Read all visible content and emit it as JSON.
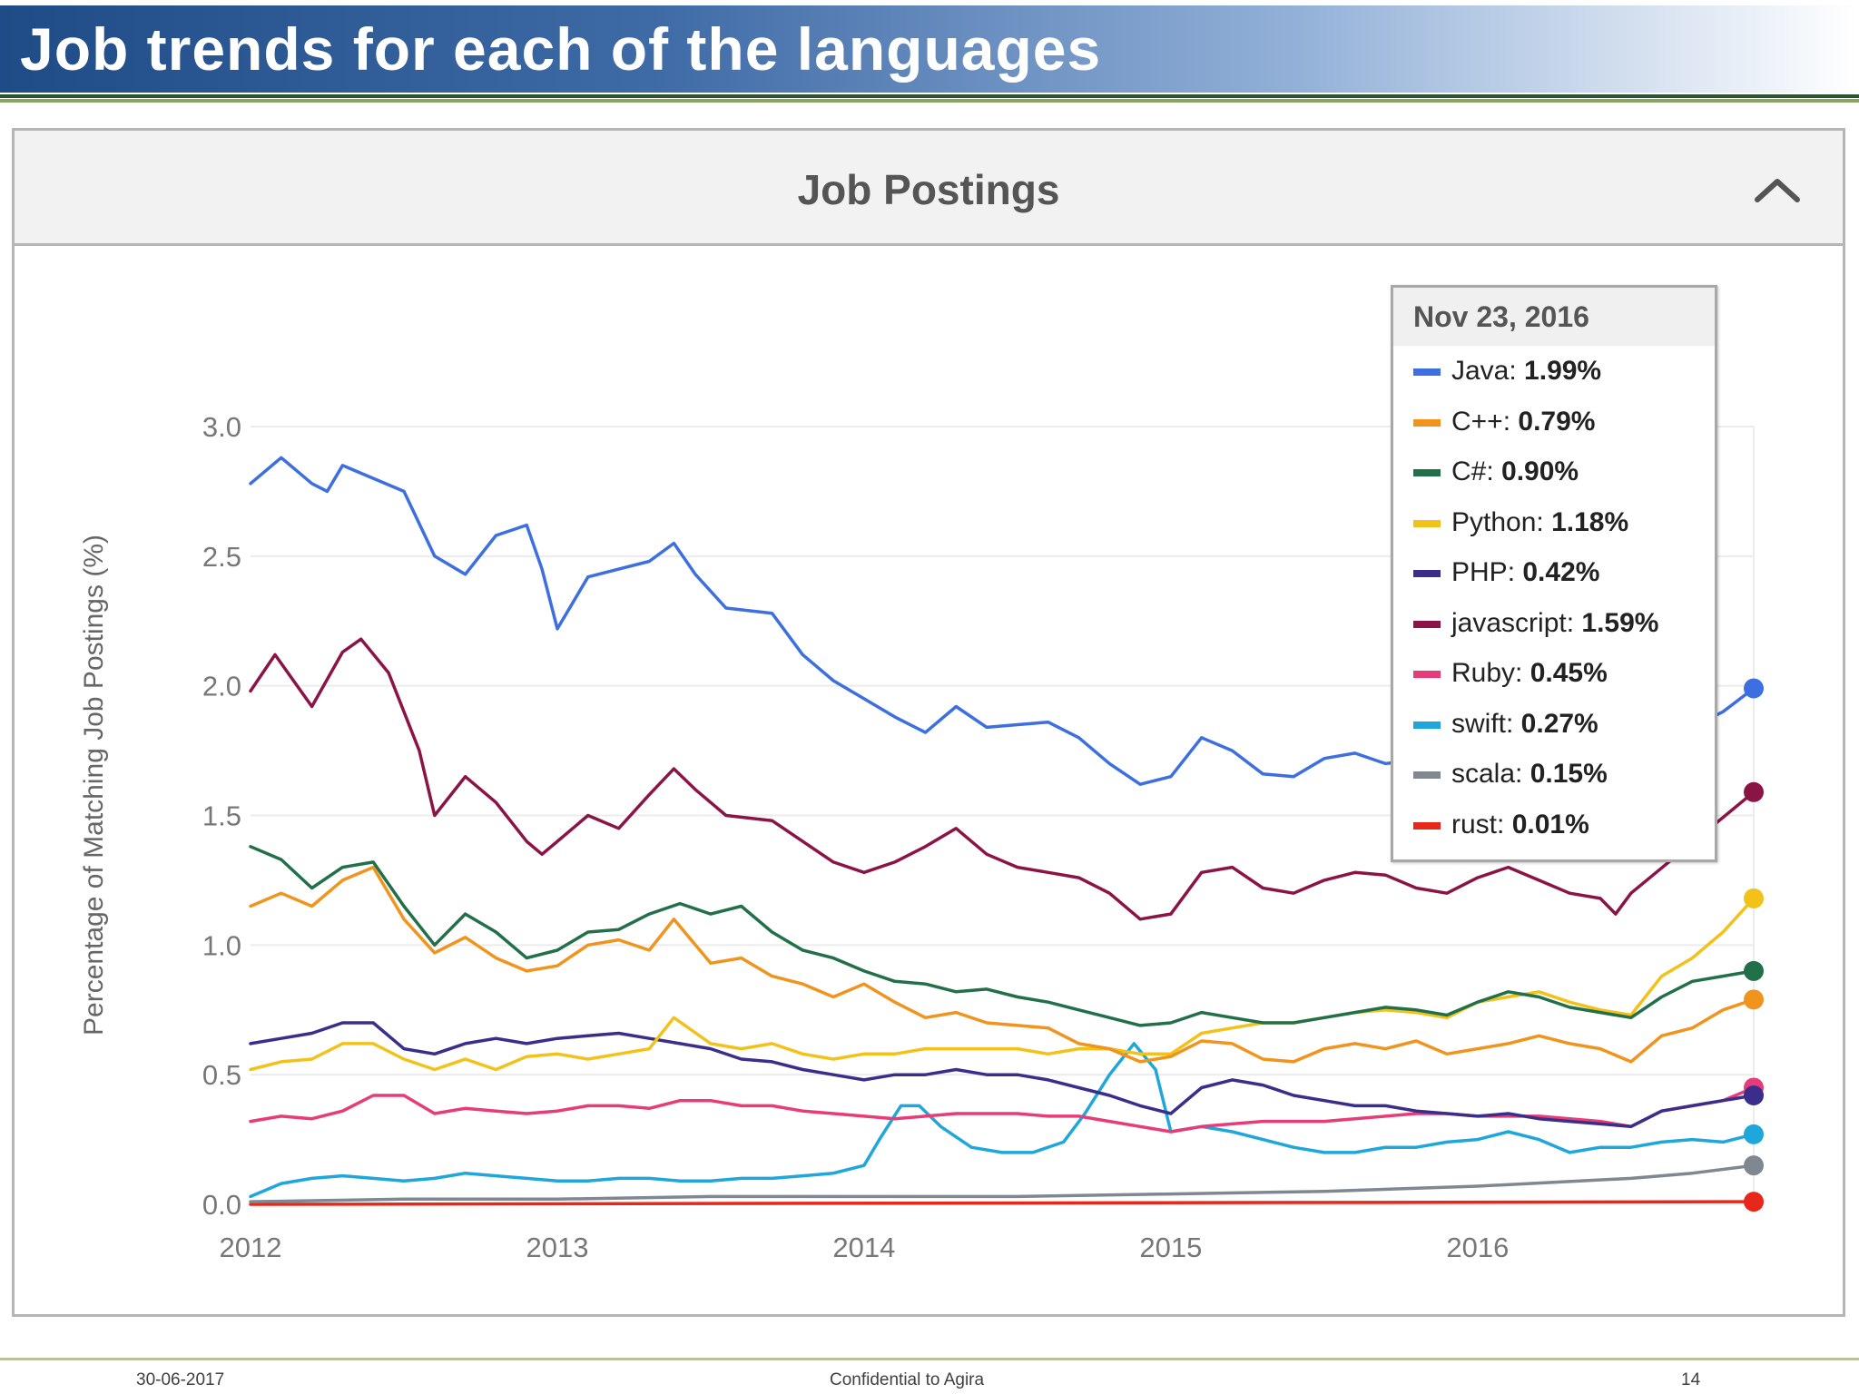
{
  "slide": {
    "title": "Job trends for each of the languages",
    "footer_date": "30-06-2017",
    "footer_center": "Confidential to Agira",
    "footer_page": "14"
  },
  "panel": {
    "title": "Job Postings",
    "collapse_icon": "chevron-up-icon"
  },
  "tooltip": {
    "date": "Nov 23, 2016",
    "rows": [
      {
        "label": "Java",
        "value": "1.99%"
      },
      {
        "label": "C++",
        "value": "0.79%"
      },
      {
        "label": "C#",
        "value": "0.90%"
      },
      {
        "label": "Python",
        "value": "1.18%"
      },
      {
        "label": "PHP",
        "value": "0.42%"
      },
      {
        "label": "javascript",
        "value": "1.59%"
      },
      {
        "label": "Ruby",
        "value": "0.45%"
      },
      {
        "label": "swift",
        "value": "0.27%"
      },
      {
        "label": "scala",
        "value": "0.15%"
      },
      {
        "label": "rust",
        "value": "0.01%"
      }
    ]
  },
  "chart_data": {
    "type": "line",
    "title": "Job Postings",
    "xlabel": "",
    "ylabel": "Percentage of Matching Job Postings (%)",
    "xlim": [
      2012.0,
      2016.9
    ],
    "ylim": [
      0,
      3.0
    ],
    "x_ticks": [
      "2012",
      "2013",
      "2014",
      "2015",
      "2016"
    ],
    "y_ticks": [
      "0.0",
      "0.5",
      "1.0",
      "1.5",
      "2.0",
      "2.5",
      "3.0"
    ],
    "grid": true,
    "series": [
      {
        "name": "Java",
        "color": "#3d6fe0",
        "x": [
          2012.0,
          2012.1,
          2012.2,
          2012.25,
          2012.3,
          2012.4,
          2012.5,
          2012.6,
          2012.7,
          2012.8,
          2012.9,
          2012.95,
          2013.0,
          2013.1,
          2013.2,
          2013.3,
          2013.38,
          2013.45,
          2013.55,
          2013.7,
          2013.8,
          2013.9,
          2014.0,
          2014.1,
          2014.2,
          2014.3,
          2014.4,
          2014.5,
          2014.6,
          2014.7,
          2014.8,
          2014.9,
          2015.0,
          2015.1,
          2015.2,
          2015.3,
          2015.4,
          2015.5,
          2015.6,
          2015.7,
          2016.7,
          2016.8,
          2016.9
        ],
        "y": [
          2.78,
          2.88,
          2.78,
          2.75,
          2.85,
          2.8,
          2.75,
          2.5,
          2.43,
          2.58,
          2.62,
          2.45,
          2.22,
          2.42,
          2.45,
          2.48,
          2.55,
          2.43,
          2.3,
          2.28,
          2.12,
          2.02,
          1.95,
          1.88,
          1.82,
          1.92,
          1.84,
          1.85,
          1.86,
          1.8,
          1.7,
          1.62,
          1.65,
          1.8,
          1.75,
          1.66,
          1.65,
          1.72,
          1.74,
          1.7,
          1.84,
          1.9,
          1.99
        ]
      },
      {
        "name": "C++",
        "color": "#f0941e",
        "x": [
          2012.0,
          2012.1,
          2012.2,
          2012.3,
          2012.4,
          2012.5,
          2012.6,
          2012.7,
          2012.8,
          2012.9,
          2013.0,
          2013.1,
          2013.2,
          2013.3,
          2013.38,
          2013.5,
          2013.6,
          2013.7,
          2013.8,
          2013.9,
          2014.0,
          2014.1,
          2014.2,
          2014.3,
          2014.4,
          2014.5,
          2014.6,
          2014.7,
          2014.8,
          2014.9,
          2015.0,
          2015.1,
          2015.2,
          2015.3,
          2015.4,
          2015.5,
          2015.6,
          2015.7,
          2015.8,
          2015.9,
          2016.0,
          2016.1,
          2016.2,
          2016.3,
          2016.4,
          2016.5,
          2016.6,
          2016.7,
          2016.8,
          2016.9
        ],
        "y": [
          1.15,
          1.2,
          1.15,
          1.25,
          1.3,
          1.1,
          0.97,
          1.03,
          0.95,
          0.9,
          0.92,
          1.0,
          1.02,
          0.98,
          1.1,
          0.93,
          0.95,
          0.88,
          0.85,
          0.8,
          0.85,
          0.78,
          0.72,
          0.74,
          0.7,
          0.69,
          0.68,
          0.62,
          0.6,
          0.55,
          0.57,
          0.63,
          0.62,
          0.56,
          0.55,
          0.6,
          0.62,
          0.6,
          0.63,
          0.58,
          0.6,
          0.62,
          0.65,
          0.62,
          0.6,
          0.55,
          0.65,
          0.68,
          0.75,
          0.79
        ]
      },
      {
        "name": "C#",
        "color": "#22704a",
        "x": [
          2012.0,
          2012.1,
          2012.2,
          2012.3,
          2012.4,
          2012.5,
          2012.6,
          2012.7,
          2012.8,
          2012.9,
          2013.0,
          2013.1,
          2013.2,
          2013.3,
          2013.4,
          2013.5,
          2013.6,
          2013.7,
          2013.8,
          2013.9,
          2014.0,
          2014.1,
          2014.2,
          2014.3,
          2014.4,
          2014.5,
          2014.6,
          2014.7,
          2014.8,
          2014.9,
          2015.0,
          2015.1,
          2015.2,
          2015.3,
          2015.4,
          2015.5,
          2015.6,
          2015.7,
          2015.8,
          2015.9,
          2016.0,
          2016.1,
          2016.2,
          2016.3,
          2016.4,
          2016.5,
          2016.6,
          2016.7,
          2016.8,
          2016.9
        ],
        "y": [
          1.38,
          1.33,
          1.22,
          1.3,
          1.32,
          1.15,
          1.0,
          1.12,
          1.05,
          0.95,
          0.98,
          1.05,
          1.06,
          1.12,
          1.16,
          1.12,
          1.15,
          1.05,
          0.98,
          0.95,
          0.9,
          0.86,
          0.85,
          0.82,
          0.83,
          0.8,
          0.78,
          0.75,
          0.72,
          0.69,
          0.7,
          0.74,
          0.72,
          0.7,
          0.7,
          0.72,
          0.74,
          0.76,
          0.75,
          0.73,
          0.78,
          0.82,
          0.8,
          0.76,
          0.74,
          0.72,
          0.8,
          0.86,
          0.88,
          0.9
        ]
      },
      {
        "name": "Python",
        "color": "#f2c21b",
        "x": [
          2012.0,
          2012.1,
          2012.2,
          2012.3,
          2012.4,
          2012.5,
          2012.6,
          2012.7,
          2012.8,
          2012.9,
          2013.0,
          2013.1,
          2013.2,
          2013.3,
          2013.38,
          2013.5,
          2013.6,
          2013.7,
          2013.8,
          2013.9,
          2014.0,
          2014.1,
          2014.2,
          2014.3,
          2014.4,
          2014.5,
          2014.6,
          2014.7,
          2014.8,
          2014.9,
          2015.0,
          2015.1,
          2015.2,
          2015.3,
          2015.4,
          2015.5,
          2015.6,
          2015.7,
          2015.8,
          2015.9,
          2016.0,
          2016.1,
          2016.2,
          2016.3,
          2016.4,
          2016.5,
          2016.6,
          2016.7,
          2016.8,
          2016.9
        ],
        "y": [
          0.52,
          0.55,
          0.56,
          0.62,
          0.62,
          0.56,
          0.52,
          0.56,
          0.52,
          0.57,
          0.58,
          0.56,
          0.58,
          0.6,
          0.72,
          0.62,
          0.6,
          0.62,
          0.58,
          0.56,
          0.58,
          0.58,
          0.6,
          0.6,
          0.6,
          0.6,
          0.58,
          0.6,
          0.6,
          0.58,
          0.58,
          0.66,
          0.68,
          0.7,
          0.7,
          0.72,
          0.74,
          0.75,
          0.74,
          0.72,
          0.78,
          0.8,
          0.82,
          0.78,
          0.75,
          0.73,
          0.88,
          0.95,
          1.05,
          1.18
        ]
      },
      {
        "name": "PHP",
        "color": "#3b2e8a",
        "x": [
          2012.0,
          2012.1,
          2012.2,
          2012.3,
          2012.4,
          2012.5,
          2012.6,
          2012.7,
          2012.8,
          2012.9,
          2013.0,
          2013.1,
          2013.2,
          2013.3,
          2013.4,
          2013.5,
          2013.6,
          2013.7,
          2013.8,
          2013.9,
          2014.0,
          2014.1,
          2014.2,
          2014.3,
          2014.4,
          2014.5,
          2014.6,
          2014.7,
          2014.8,
          2014.9,
          2015.0,
          2015.1,
          2015.2,
          2015.3,
          2015.4,
          2015.5,
          2015.6,
          2015.7,
          2015.8,
          2015.9,
          2016.0,
          2016.1,
          2016.2,
          2016.3,
          2016.4,
          2016.5,
          2016.6,
          2016.7,
          2016.8,
          2016.9
        ],
        "y": [
          0.62,
          0.64,
          0.66,
          0.7,
          0.7,
          0.6,
          0.58,
          0.62,
          0.64,
          0.62,
          0.64,
          0.65,
          0.66,
          0.64,
          0.62,
          0.6,
          0.56,
          0.55,
          0.52,
          0.5,
          0.48,
          0.5,
          0.5,
          0.52,
          0.5,
          0.5,
          0.48,
          0.45,
          0.42,
          0.38,
          0.35,
          0.45,
          0.48,
          0.46,
          0.42,
          0.4,
          0.38,
          0.38,
          0.36,
          0.35,
          0.34,
          0.35,
          0.33,
          0.32,
          0.31,
          0.3,
          0.36,
          0.38,
          0.4,
          0.42
        ]
      },
      {
        "name": "javascript",
        "color": "#8b1446",
        "x": [
          2012.0,
          2012.08,
          2012.2,
          2012.3,
          2012.36,
          2012.45,
          2012.55,
          2012.6,
          2012.7,
          2012.8,
          2012.9,
          2012.95,
          2013.0,
          2013.1,
          2013.2,
          2013.3,
          2013.38,
          2013.45,
          2013.55,
          2013.7,
          2013.8,
          2013.9,
          2014.0,
          2014.1,
          2014.2,
          2014.3,
          2014.4,
          2014.5,
          2014.6,
          2014.7,
          2014.8,
          2014.9,
          2015.0,
          2015.1,
          2015.2,
          2015.3,
          2015.4,
          2015.5,
          2015.6,
          2015.7,
          2015.8,
          2015.9,
          2016.0,
          2016.1,
          2016.2,
          2016.3,
          2016.4,
          2016.45,
          2016.5,
          2016.9
        ],
        "y": [
          1.98,
          2.12,
          1.92,
          2.13,
          2.18,
          2.05,
          1.75,
          1.5,
          1.65,
          1.55,
          1.4,
          1.35,
          1.4,
          1.5,
          1.45,
          1.58,
          1.68,
          1.6,
          1.5,
          1.48,
          1.4,
          1.32,
          1.28,
          1.32,
          1.38,
          1.45,
          1.35,
          1.3,
          1.28,
          1.26,
          1.2,
          1.1,
          1.12,
          1.28,
          1.3,
          1.22,
          1.2,
          1.25,
          1.28,
          1.27,
          1.22,
          1.2,
          1.26,
          1.3,
          1.25,
          1.2,
          1.18,
          1.12,
          1.2,
          1.59
        ]
      },
      {
        "name": "Ruby",
        "color": "#e63c78",
        "x": [
          2012.0,
          2012.1,
          2012.2,
          2012.3,
          2012.4,
          2012.5,
          2012.6,
          2012.7,
          2012.8,
          2012.9,
          2013.0,
          2013.1,
          2013.2,
          2013.3,
          2013.4,
          2013.5,
          2013.6,
          2013.7,
          2013.8,
          2013.9,
          2014.0,
          2014.1,
          2014.2,
          2014.3,
          2014.4,
          2014.5,
          2014.6,
          2014.7,
          2014.8,
          2014.9,
          2015.0,
          2015.1,
          2015.2,
          2015.3,
          2015.4,
          2015.5,
          2015.6,
          2015.7,
          2015.8,
          2015.9,
          2016.0,
          2016.1,
          2016.2,
          2016.3,
          2016.4,
          2016.5,
          2016.6,
          2016.7,
          2016.8,
          2016.9
        ],
        "y": [
          0.32,
          0.34,
          0.33,
          0.36,
          0.42,
          0.42,
          0.35,
          0.37,
          0.36,
          0.35,
          0.36,
          0.38,
          0.38,
          0.37,
          0.4,
          0.4,
          0.38,
          0.38,
          0.36,
          0.35,
          0.34,
          0.33,
          0.34,
          0.35,
          0.35,
          0.35,
          0.34,
          0.34,
          0.32,
          0.3,
          0.28,
          0.3,
          0.31,
          0.32,
          0.32,
          0.32,
          0.33,
          0.34,
          0.35,
          0.35,
          0.34,
          0.34,
          0.34,
          0.33,
          0.32,
          0.3,
          0.36,
          0.38,
          0.4,
          0.45
        ]
      },
      {
        "name": "swift",
        "color": "#1fa7dc",
        "x": [
          2012.0,
          2012.1,
          2012.2,
          2012.3,
          2012.4,
          2012.5,
          2012.6,
          2012.7,
          2012.8,
          2012.9,
          2013.0,
          2013.1,
          2013.2,
          2013.3,
          2013.4,
          2013.5,
          2013.6,
          2013.7,
          2013.8,
          2013.9,
          2014.0,
          2014.05,
          2014.12,
          2014.18,
          2014.25,
          2014.35,
          2014.45,
          2014.55,
          2014.65,
          2014.72,
          2014.8,
          2014.88,
          2014.95,
          2015.0,
          2015.1,
          2015.2,
          2015.3,
          2015.4,
          2015.5,
          2015.6,
          2015.7,
          2015.8,
          2015.9,
          2016.0,
          2016.1,
          2016.2,
          2016.3,
          2016.4,
          2016.5,
          2016.6,
          2016.7,
          2016.8,
          2016.9
        ],
        "y": [
          0.03,
          0.08,
          0.1,
          0.11,
          0.1,
          0.09,
          0.1,
          0.12,
          0.11,
          0.1,
          0.09,
          0.09,
          0.1,
          0.1,
          0.09,
          0.09,
          0.1,
          0.1,
          0.11,
          0.12,
          0.15,
          0.25,
          0.38,
          0.38,
          0.3,
          0.22,
          0.2,
          0.2,
          0.24,
          0.35,
          0.5,
          0.62,
          0.52,
          0.28,
          0.3,
          0.28,
          0.25,
          0.22,
          0.2,
          0.2,
          0.22,
          0.22,
          0.24,
          0.25,
          0.28,
          0.25,
          0.2,
          0.22,
          0.22,
          0.24,
          0.25,
          0.24,
          0.27
        ]
      },
      {
        "name": "scala",
        "color": "#7f8790",
        "x": [
          2012.0,
          2012.5,
          2013.0,
          2013.5,
          2014.0,
          2014.5,
          2015.0,
          2015.5,
          2016.0,
          2016.5,
          2016.7,
          2016.9
        ],
        "y": [
          0.01,
          0.02,
          0.02,
          0.03,
          0.03,
          0.03,
          0.04,
          0.05,
          0.07,
          0.1,
          0.12,
          0.15
        ]
      },
      {
        "name": "rust",
        "color": "#e8271b",
        "x": [
          2012.0,
          2016.9
        ],
        "y": [
          0.0,
          0.01
        ]
      }
    ]
  }
}
